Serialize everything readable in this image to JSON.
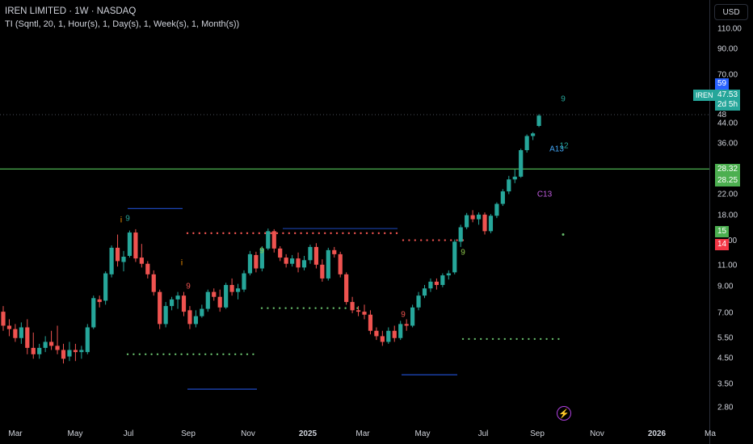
{
  "header": {
    "title": "IREN LIMITED · 1W · NASDAQ",
    "indicator": "TI (Sqntl, 20, 1, Hour(s), 1, Day(s), 1, Week(s), 1, Month(s))"
  },
  "currency_button": "USD",
  "price_axis": [
    "110.00",
    "90.00",
    "70.00",
    "44.00",
    "36.00",
    "22.00",
    "18.00",
    "11.00",
    "9.00",
    "7.00",
    "5.50",
    "4.50",
    "3.50",
    "2.80"
  ],
  "time_axis": [
    "Mar",
    "May",
    "Jul",
    "Sep",
    "Nov",
    "2025",
    "Mar",
    "May",
    "Jul",
    "Sep",
    "Nov",
    "2026",
    "Ma"
  ],
  "price_tags": [
    {
      "text": "59",
      "color": "#2962ff"
    },
    {
      "text": "IREN",
      "color": "#26a69a"
    },
    {
      "text": "47.53",
      "color": "#26a69a"
    },
    {
      "text": "2d 5h",
      "color": "#26a69a"
    },
    {
      "text": "48",
      "color": "#000000"
    },
    {
      "text": "28.32",
      "color": "#4caf50"
    },
    {
      "text": "28.25",
      "color": "#4caf50"
    },
    {
      "text": "15",
      "color": "#4caf50"
    },
    {
      "text": "14",
      "color": "#f23645"
    },
    {
      "text": "00",
      "color": "#000000"
    }
  ],
  "td_labels": [
    {
      "text": "9",
      "color": "#26a69a"
    },
    {
      "text": "i",
      "color": "#ff9800"
    },
    {
      "text": "i",
      "color": "#ff9800"
    },
    {
      "text": "9",
      "color": "#ef5350"
    },
    {
      "text": "9",
      "color": "#8bc34a"
    },
    {
      "text": "9",
      "color": "#ef5350"
    },
    {
      "text": "9",
      "color": "#8bc34a"
    },
    {
      "text": "C13",
      "color": "#c05ce0"
    },
    {
      "text": "A13",
      "color": "#42a5f5"
    },
    {
      "text": "12",
      "color": "#26a69a"
    },
    {
      "text": "9",
      "color": "#26a69a"
    }
  ],
  "bolt_icon": "⚡",
  "chart_data": {
    "type": "candlestick",
    "symbol": "IREN",
    "interval": "1W",
    "y_scale": "log",
    "ylim": [
      2.5,
      130
    ],
    "up_color": "#26a69a",
    "down_color": "#ef5350",
    "candles": [
      {
        "o": 7.1,
        "h": 7.5,
        "l": 5.9,
        "c": 6.2
      },
      {
        "o": 6.2,
        "h": 6.6,
        "l": 5.6,
        "c": 6.0
      },
      {
        "o": 6.0,
        "h": 6.3,
        "l": 5.3,
        "c": 5.5
      },
      {
        "o": 5.5,
        "h": 6.4,
        "l": 5.2,
        "c": 6.1
      },
      {
        "o": 6.1,
        "h": 6.6,
        "l": 4.7,
        "c": 5.0
      },
      {
        "o": 5.0,
        "h": 5.8,
        "l": 4.5,
        "c": 4.7
      },
      {
        "o": 4.7,
        "h": 5.2,
        "l": 4.5,
        "c": 5.0
      },
      {
        "o": 5.0,
        "h": 5.6,
        "l": 4.8,
        "c": 5.3
      },
      {
        "o": 5.3,
        "h": 5.9,
        "l": 4.9,
        "c": 5.1
      },
      {
        "o": 5.1,
        "h": 6.2,
        "l": 4.7,
        "c": 4.9
      },
      {
        "o": 4.9,
        "h": 5.2,
        "l": 4.3,
        "c": 4.5
      },
      {
        "o": 4.6,
        "h": 5.3,
        "l": 4.4,
        "c": 4.9
      },
      {
        "o": 4.9,
        "h": 5.2,
        "l": 4.4,
        "c": 4.8
      },
      {
        "o": 4.8,
        "h": 5.1,
        "l": 4.5,
        "c": 4.9
      },
      {
        "o": 4.8,
        "h": 6.3,
        "l": 4.7,
        "c": 6.1
      },
      {
        "o": 6.1,
        "h": 8.3,
        "l": 6.0,
        "c": 8.1
      },
      {
        "o": 8.0,
        "h": 8.3,
        "l": 7.4,
        "c": 7.8
      },
      {
        "o": 7.9,
        "h": 10.5,
        "l": 7.6,
        "c": 10.3
      },
      {
        "o": 10.2,
        "h": 13.5,
        "l": 9.9,
        "c": 13.2
      },
      {
        "o": 13.2,
        "h": 15.0,
        "l": 11.0,
        "c": 11.6
      },
      {
        "o": 11.5,
        "h": 12.8,
        "l": 10.5,
        "c": 12.1
      },
      {
        "o": 12.2,
        "h": 15.6,
        "l": 12.0,
        "c": 15.3
      },
      {
        "o": 15.3,
        "h": 15.8,
        "l": 11.5,
        "c": 11.9
      },
      {
        "o": 12.0,
        "h": 13.7,
        "l": 10.9,
        "c": 11.3
      },
      {
        "o": 11.3,
        "h": 11.6,
        "l": 9.8,
        "c": 10.2
      },
      {
        "o": 10.2,
        "h": 10.6,
        "l": 8.3,
        "c": 8.6
      },
      {
        "o": 8.6,
        "h": 8.8,
        "l": 6.0,
        "c": 6.3
      },
      {
        "o": 6.3,
        "h": 7.8,
        "l": 6.1,
        "c": 7.5
      },
      {
        "o": 7.5,
        "h": 8.2,
        "l": 7.2,
        "c": 8.0
      },
      {
        "o": 8.0,
        "h": 8.6,
        "l": 7.3,
        "c": 8.3
      },
      {
        "o": 8.3,
        "h": 8.6,
        "l": 6.8,
        "c": 7.1
      },
      {
        "o": 7.2,
        "h": 7.5,
        "l": 6.0,
        "c": 6.3
      },
      {
        "o": 6.3,
        "h": 7.2,
        "l": 6.1,
        "c": 6.8
      },
      {
        "o": 6.8,
        "h": 7.6,
        "l": 6.7,
        "c": 7.3
      },
      {
        "o": 7.3,
        "h": 8.8,
        "l": 7.1,
        "c": 8.6
      },
      {
        "o": 8.6,
        "h": 8.9,
        "l": 7.9,
        "c": 8.2
      },
      {
        "o": 8.2,
        "h": 8.8,
        "l": 7.1,
        "c": 7.4
      },
      {
        "o": 7.4,
        "h": 9.4,
        "l": 7.3,
        "c": 9.2
      },
      {
        "o": 9.2,
        "h": 9.8,
        "l": 8.3,
        "c": 8.6
      },
      {
        "o": 8.6,
        "h": 9.3,
        "l": 8.0,
        "c": 8.9
      },
      {
        "o": 8.8,
        "h": 10.6,
        "l": 8.6,
        "c": 10.3
      },
      {
        "o": 10.3,
        "h": 12.8,
        "l": 10.1,
        "c": 12.4
      },
      {
        "o": 12.3,
        "h": 12.7,
        "l": 10.4,
        "c": 10.8
      },
      {
        "o": 10.8,
        "h": 13.4,
        "l": 10.5,
        "c": 13.1
      },
      {
        "o": 13.1,
        "h": 15.9,
        "l": 12.9,
        "c": 15.5
      },
      {
        "o": 15.5,
        "h": 15.8,
        "l": 12.6,
        "c": 13.1
      },
      {
        "o": 13.1,
        "h": 13.4,
        "l": 11.6,
        "c": 12.0
      },
      {
        "o": 12.0,
        "h": 12.4,
        "l": 10.9,
        "c": 11.3
      },
      {
        "o": 11.3,
        "h": 12.3,
        "l": 11.0,
        "c": 11.9
      },
      {
        "o": 11.9,
        "h": 12.6,
        "l": 10.4,
        "c": 10.9
      },
      {
        "o": 10.9,
        "h": 12.2,
        "l": 10.6,
        "c": 11.7
      },
      {
        "o": 11.7,
        "h": 13.6,
        "l": 11.3,
        "c": 13.3
      },
      {
        "o": 13.3,
        "h": 13.8,
        "l": 10.8,
        "c": 11.2
      },
      {
        "o": 11.2,
        "h": 11.8,
        "l": 9.5,
        "c": 9.8
      },
      {
        "o": 9.8,
        "h": 13.2,
        "l": 9.6,
        "c": 12.9
      },
      {
        "o": 12.9,
        "h": 13.3,
        "l": 12.0,
        "c": 12.4
      },
      {
        "o": 12.4,
        "h": 12.7,
        "l": 9.9,
        "c": 10.2
      },
      {
        "o": 10.2,
        "h": 10.4,
        "l": 7.6,
        "c": 7.8
      },
      {
        "o": 7.8,
        "h": 8.2,
        "l": 7.0,
        "c": 7.2
      },
      {
        "o": 7.2,
        "h": 7.5,
        "l": 6.8,
        "c": 7.1
      },
      {
        "o": 7.1,
        "h": 7.6,
        "l": 6.6,
        "c": 6.9
      },
      {
        "o": 6.9,
        "h": 7.2,
        "l": 5.7,
        "c": 5.9
      },
      {
        "o": 5.9,
        "h": 6.1,
        "l": 5.4,
        "c": 5.6
      },
      {
        "o": 5.6,
        "h": 5.9,
        "l": 5.1,
        "c": 5.3
      },
      {
        "o": 5.3,
        "h": 6.1,
        "l": 5.2,
        "c": 5.9
      },
      {
        "o": 5.9,
        "h": 6.2,
        "l": 5.3,
        "c": 5.5
      },
      {
        "o": 5.5,
        "h": 6.5,
        "l": 5.4,
        "c": 6.3
      },
      {
        "o": 6.3,
        "h": 6.6,
        "l": 5.9,
        "c": 6.2
      },
      {
        "o": 6.2,
        "h": 7.6,
        "l": 6.1,
        "c": 7.4
      },
      {
        "o": 7.4,
        "h": 8.6,
        "l": 7.2,
        "c": 8.3
      },
      {
        "o": 8.3,
        "h": 9.2,
        "l": 8.1,
        "c": 8.9
      },
      {
        "o": 8.9,
        "h": 9.8,
        "l": 8.6,
        "c": 9.5
      },
      {
        "o": 9.5,
        "h": 9.8,
        "l": 8.8,
        "c": 9.2
      },
      {
        "o": 9.2,
        "h": 10.3,
        "l": 9.0,
        "c": 10.1
      },
      {
        "o": 10.1,
        "h": 10.6,
        "l": 9.7,
        "c": 10.3
      },
      {
        "o": 10.4,
        "h": 14.3,
        "l": 10.2,
        "c": 14.0
      },
      {
        "o": 14.0,
        "h": 16.5,
        "l": 13.3,
        "c": 16.1
      },
      {
        "o": 16.1,
        "h": 18.5,
        "l": 15.8,
        "c": 18.1
      },
      {
        "o": 18.1,
        "h": 19.0,
        "l": 16.9,
        "c": 17.4
      },
      {
        "o": 17.4,
        "h": 18.6,
        "l": 16.5,
        "c": 18.2
      },
      {
        "o": 18.2,
        "h": 18.6,
        "l": 15.0,
        "c": 15.5
      },
      {
        "o": 15.5,
        "h": 18.3,
        "l": 15.2,
        "c": 18.0
      },
      {
        "o": 18.0,
        "h": 20.5,
        "l": 17.6,
        "c": 20.2
      },
      {
        "o": 20.2,
        "h": 23.3,
        "l": 19.8,
        "c": 22.8
      },
      {
        "o": 22.8,
        "h": 26.5,
        "l": 22.2,
        "c": 25.6
      },
      {
        "o": 25.6,
        "h": 28.2,
        "l": 24.7,
        "c": 26.3
      },
      {
        "o": 26.3,
        "h": 34.5,
        "l": 26.0,
        "c": 34.0
      },
      {
        "o": 34.0,
        "h": 39.6,
        "l": 33.2,
        "c": 39.0
      },
      {
        "o": 39.0,
        "h": 40.5,
        "l": 37.5,
        "c": 40.0
      },
      {
        "o": 43.0,
        "h": 48.2,
        "l": 42.5,
        "c": 47.53
      }
    ],
    "horizontal_line": 28.32,
    "annotation_price": 48
  }
}
